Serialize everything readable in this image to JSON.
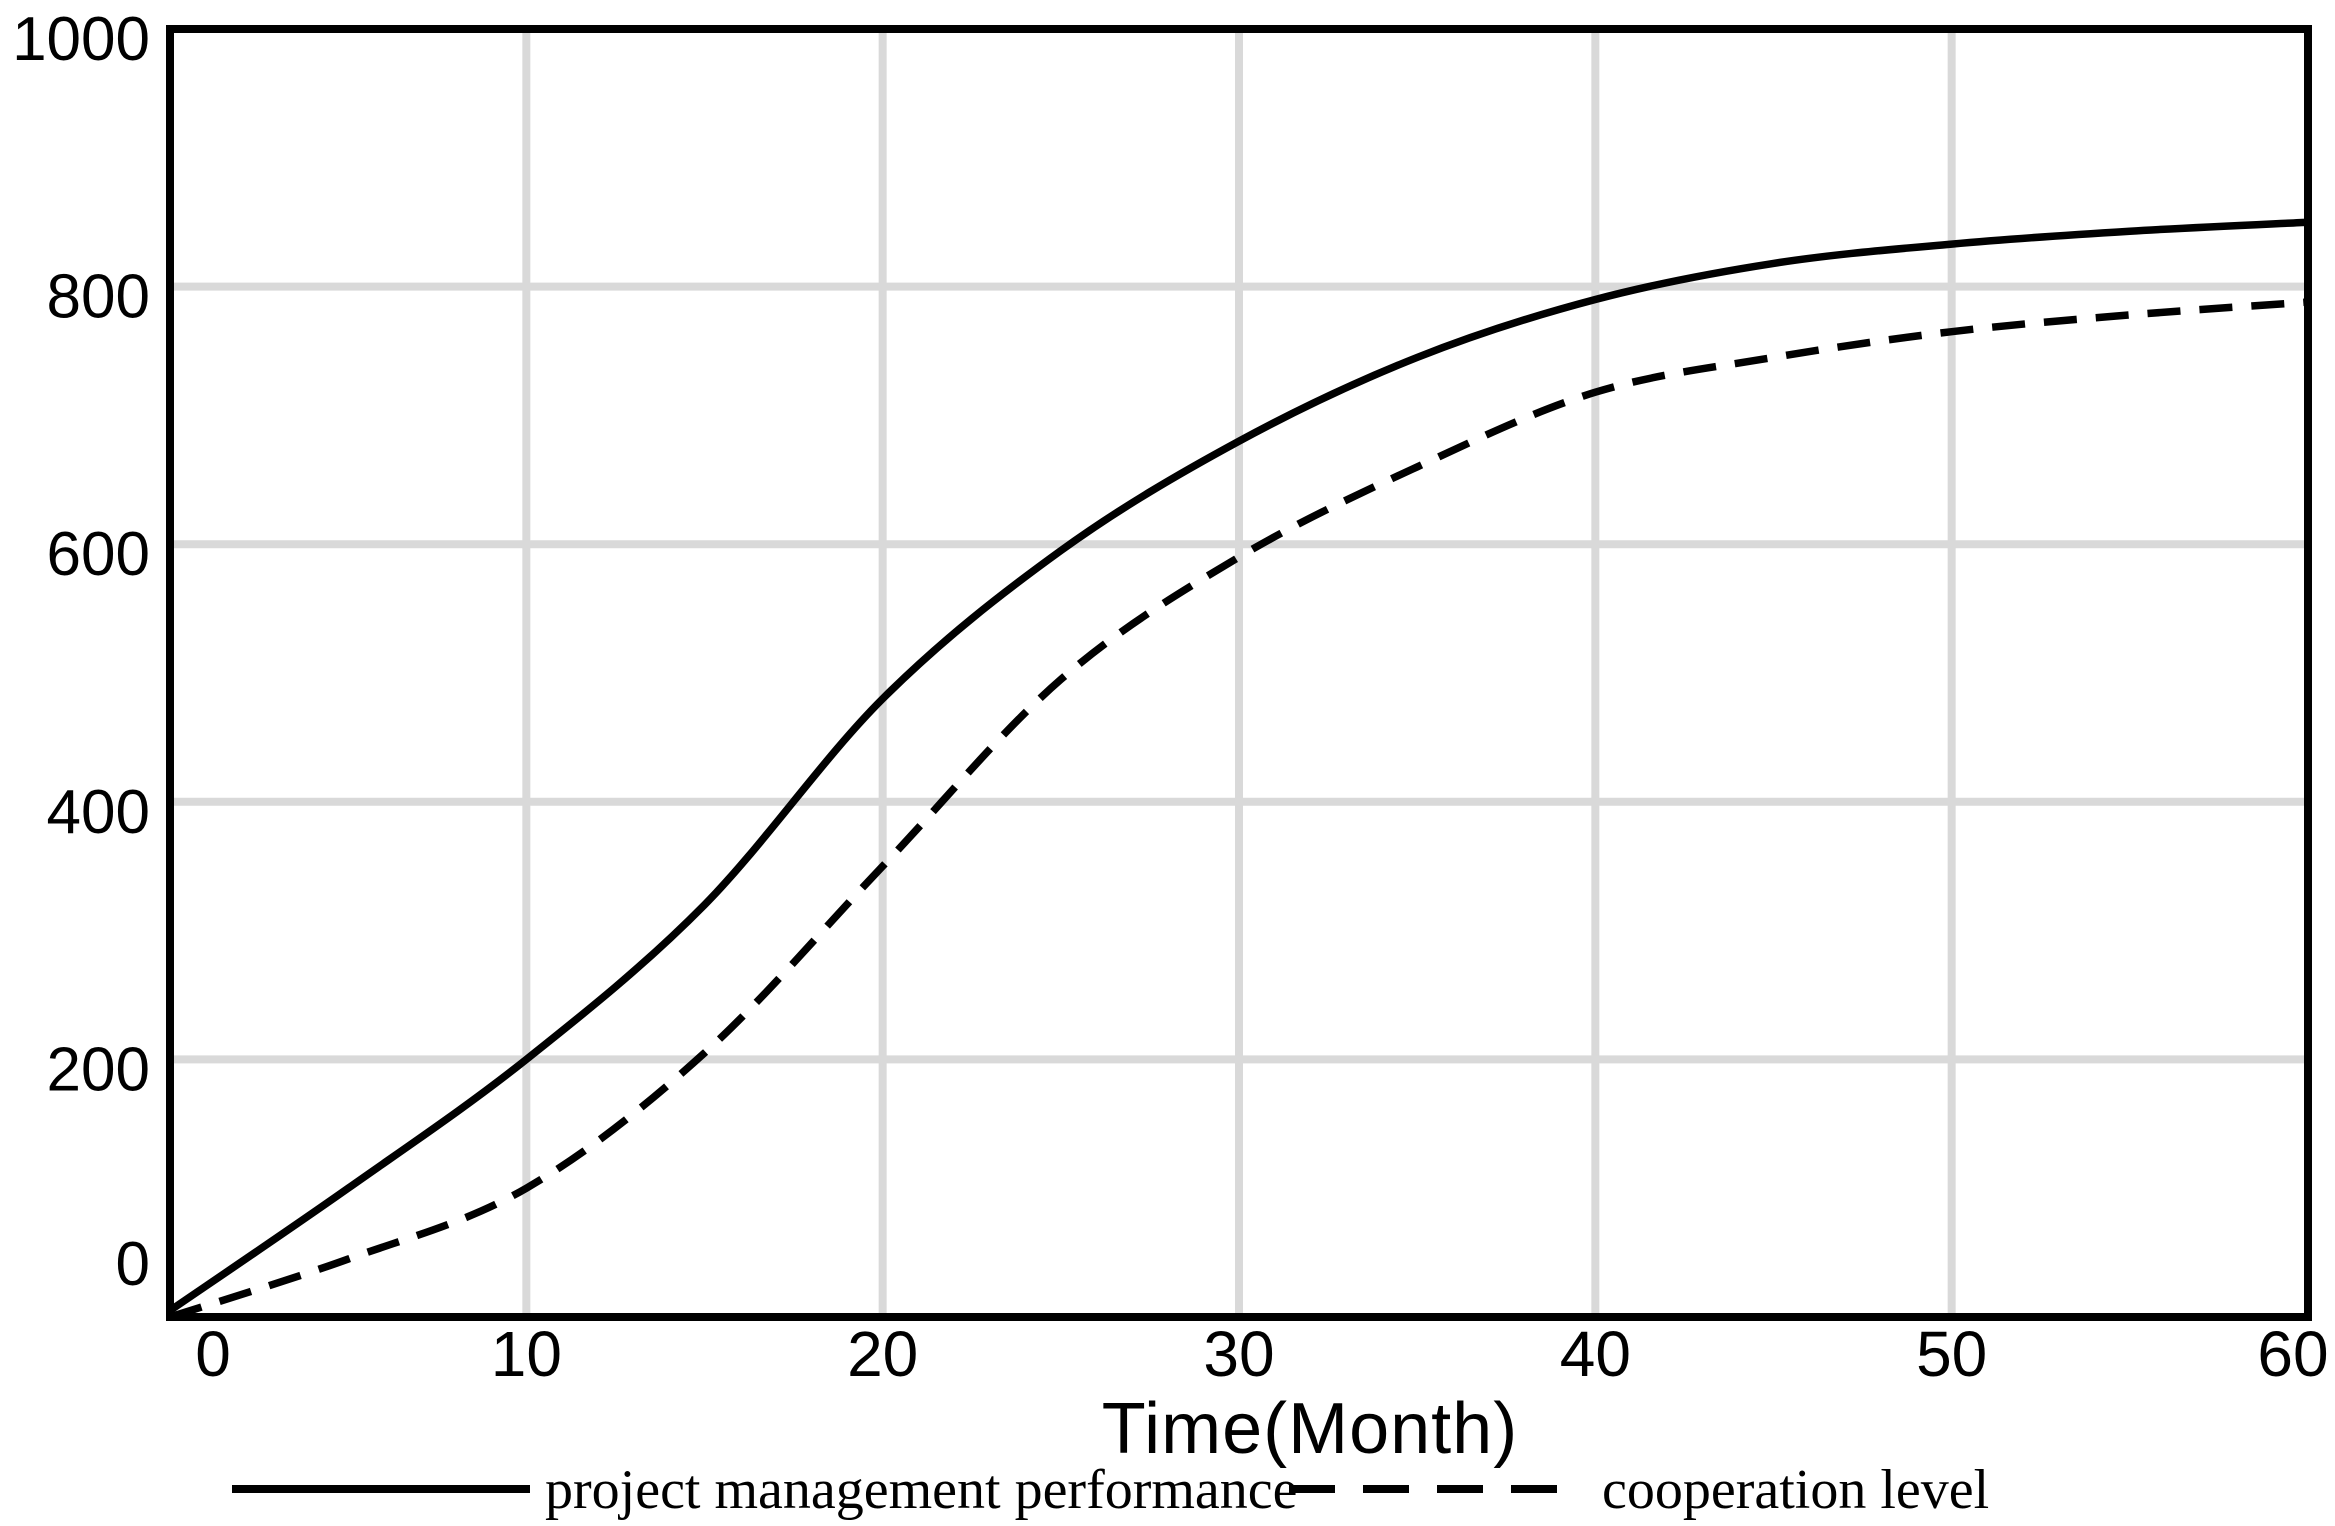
{
  "chart_data": {
    "type": "line",
    "title": "",
    "xlabel": "Time(Month)",
    "ylabel": "",
    "xlim": [
      0,
      60
    ],
    "ylim": [
      0,
      1000
    ],
    "x_ticks": [
      0,
      10,
      20,
      30,
      40,
      50,
      60
    ],
    "y_ticks": [
      0,
      200,
      400,
      600,
      800,
      1000
    ],
    "grid": true,
    "legend_position": "bottom",
    "x": [
      0,
      5,
      10,
      15,
      20,
      25,
      30,
      35,
      40,
      45,
      50,
      55,
      60
    ],
    "series": [
      {
        "name": "project management performance",
        "style": "solid",
        "values": [
          5,
          100,
          200,
          320,
          480,
          595,
          680,
          745,
          790,
          818,
          833,
          843,
          850
        ]
      },
      {
        "name": "cooperation level",
        "style": "dashed",
        "values": [
          0,
          45,
          100,
          205,
          350,
          495,
          590,
          660,
          718,
          745,
          765,
          778,
          788
        ]
      }
    ],
    "colors": {
      "line": "#000000",
      "grid": "#d9d9d9",
      "background": "#ffffff",
      "text": "#000000"
    }
  }
}
